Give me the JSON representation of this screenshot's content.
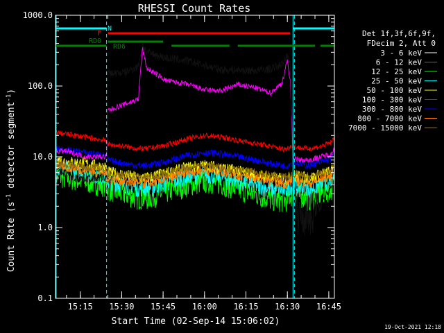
{
  "chart_data": {
    "type": "line",
    "title": "RHESSI Count Rates",
    "xlabel": "Start Time (02-Sep-14 15:06:02)",
    "ylabel": "Count Rate (s⁻¹ detector segment⁻¹)",
    "ylabel_main": "Count Rate (s",
    "ylabel_sup1": "-1",
    "ylabel_mid": " detector segment",
    "ylabel_sup2": "-1",
    "ylabel_end": ")",
    "y_scale": "log",
    "ylim": [
      0.1,
      1000
    ],
    "xlim": [
      "15:06:02",
      "16:47:00"
    ],
    "x_ticks": [
      "15:15",
      "15:30",
      "15:45",
      "16:00",
      "16:15",
      "16:30",
      "16:45"
    ],
    "y_ticks": [
      "0.1",
      "1.0",
      "10.0",
      "100.0",
      "1000.0"
    ],
    "legend_position": "right",
    "legend_header": [
      "Det 1f,3f,6f,9f,",
      "FDecim 2, Att 0"
    ],
    "series": [
      {
        "name": "3 - 6 keV",
        "color": "#000000",
        "values": [
          6,
          6,
          5,
          5,
          5,
          5,
          5,
          6,
          150,
          155,
          190,
          390,
          300,
          250,
          225,
          195,
          170,
          168,
          165,
          175,
          200,
          270,
          230,
          2.0,
          1.5,
          1.5,
          2.0,
          4.0,
          8.5
        ]
      },
      {
        "name": "6 - 12 keV",
        "color": "#ff00ff",
        "values": [
          12,
          12,
          11,
          10,
          10,
          10,
          11,
          11,
          45,
          55,
          65,
          350,
          180,
          120,
          105,
          88,
          85,
          105,
          95,
          80,
          110,
          230,
          120,
          10,
          9,
          9,
          10,
          11,
          13
        ]
      },
      {
        "name": "12 - 25 keV",
        "color": "#00ff00",
        "values": [
          5.5,
          5,
          4.8,
          4.5,
          4.2,
          4,
          4,
          3.8,
          3.5,
          3,
          2.6,
          2.7,
          2.6,
          3.2,
          4.0,
          4.5,
          4.2,
          3.5,
          3.0,
          2.5,
          2.4,
          2.5,
          2.8,
          3.0,
          2.8,
          2.5,
          3.0,
          3.6,
          4.5
        ]
      },
      {
        "name": "25 - 50 keV",
        "color": "#00ffff",
        "values": [
          7,
          6.5,
          6.3,
          6,
          5.5,
          5.2,
          5,
          4.8,
          4.5,
          4,
          3.6,
          3.6,
          3.6,
          4.2,
          5.2,
          5.6,
          5.2,
          4.6,
          4.0,
          3.5,
          3.4,
          3.5,
          3.8,
          4.0,
          3.8,
          3.5,
          4.0,
          4.5,
          5.5
        ]
      },
      {
        "name": "50 - 100 keV",
        "color": "#ffff00",
        "values": [
          9,
          8.5,
          8.2,
          8,
          7.5,
          7,
          6.8,
          6.5,
          6,
          5.5,
          5,
          5,
          5,
          5.8,
          7,
          7.5,
          7,
          6.2,
          5.5,
          5,
          4.8,
          4.8,
          5.2,
          5.5,
          5.2,
          5,
          5.5,
          6.2,
          7.5
        ]
      },
      {
        "name": "100 - 300 keV",
        "color": "#ff0000",
        "values": [
          22,
          21,
          20,
          19,
          18,
          17,
          16.5,
          16,
          15,
          14,
          13,
          13,
          13,
          14.5,
          18,
          20,
          19,
          17,
          15.5,
          14,
          13,
          13,
          14,
          14.5,
          13.5,
          13,
          14,
          16,
          20
        ]
      },
      {
        "name": "300 - 800 keV",
        "color": "#0000ff",
        "values": [
          13,
          12.5,
          12,
          11.5,
          11,
          10.5,
          10,
          9.5,
          9,
          8,
          7.5,
          7.5,
          7.5,
          8.5,
          10.5,
          11.5,
          11,
          10,
          9,
          8,
          7.5,
          7.5,
          8,
          8.5,
          8,
          7.5,
          8.5,
          9.5,
          12
        ]
      },
      {
        "name": "800 - 7000 keV",
        "color": "#ff8000",
        "values": [
          7.5,
          7,
          6.8,
          6.5,
          6,
          5.8,
          5.5,
          5.2,
          5,
          4.5,
          4.2,
          4.2,
          4.2,
          4.8,
          6,
          6.5,
          6.2,
          5.5,
          5,
          4.5,
          4.2,
          4.2,
          4.5,
          4.8,
          4.5,
          4.2,
          4.8,
          5.4,
          6.5
        ]
      },
      {
        "name": "7000 - 15000 keV",
        "color": "#8b6914",
        "values": [
          8,
          7.8,
          7.5,
          7.2,
          7,
          6.8,
          6.5,
          6.2,
          6,
          5.5,
          5.2,
          5.2,
          5.2,
          5.8,
          7,
          7.5,
          7.2,
          6.5,
          6,
          5.5,
          5.2,
          5.2,
          5.5,
          5.8,
          5.5,
          5.2,
          5.8,
          6.5,
          7.5
        ]
      }
    ],
    "x_samples_min": [
      0,
      3.6,
      7.2,
      10.8,
      14.4,
      18,
      18.5,
      18.7,
      18.9,
      25,
      30,
      31.5,
      33,
      40,
      48,
      54,
      60,
      66,
      72,
      78,
      82,
      84,
      85,
      86,
      88,
      92,
      96,
      100,
      101
    ]
  },
  "annotations": {
    "N": "N",
    "F": "F",
    "RD0": "RD0",
    "RD6": "RD6",
    "timestamp": "19-Oct-2021 12:18",
    "cyan_bars": [
      [
        0,
        18.5
      ],
      [
        86,
        101
      ]
    ],
    "red_bar": [
      19,
      85
    ],
    "green_bars": [
      [
        0,
        18.5
      ],
      [
        19,
        39
      ],
      [
        42,
        63
      ],
      [
        66,
        94
      ],
      [
        96,
        101
      ]
    ],
    "vlines_min": [
      18.5,
      86,
      101
    ]
  },
  "colors": {
    "background": "#000000",
    "axes": "#ffffff",
    "cyan": "#00ffff",
    "red": "#ff0000",
    "green": "#008000"
  }
}
